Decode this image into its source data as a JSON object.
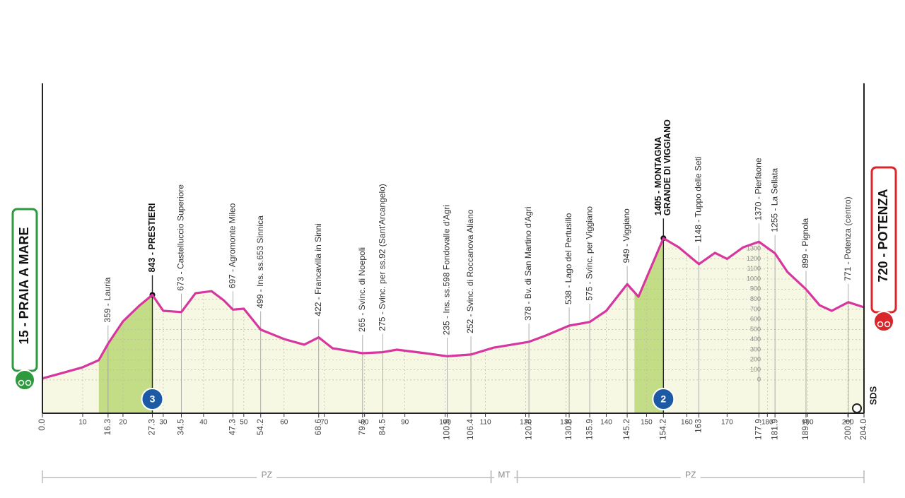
{
  "chart_data": {
    "type": "area",
    "x": [
      0,
      5,
      10,
      14,
      16.3,
      20,
      24,
      27.3,
      30,
      34.5,
      38,
      42,
      45,
      47.3,
      50,
      54.2,
      60,
      65,
      68.6,
      72,
      79.5,
      84.5,
      88,
      95,
      100.5,
      106.4,
      112,
      120.8,
      125,
      130.8,
      135.9,
      140,
      145.2,
      148,
      154.2,
      158,
      163,
      167,
      170,
      174,
      177.9,
      181.9,
      185,
      189.6,
      193,
      196,
      200.1,
      204
    ],
    "values": [
      15,
      70,
      126,
      196,
      359,
      580,
      734,
      843,
      685,
      673,
      860,
      880,
      790,
      697,
      706,
      499,
      405,
      350,
      422,
      315,
      265,
      275,
      300,
      265,
      235,
      252,
      320,
      378,
      440,
      538,
      575,
      685,
      949,
      825,
      1405,
      1315,
      1148,
      1260,
      1200,
      1315,
      1370,
      1255,
      1070,
      899,
      740,
      685,
      771,
      720
    ],
    "color": "#d6369e",
    "fill": "#f7f8e3",
    "xlim": [
      0,
      204
    ],
    "ylim": [
      -330,
      2940
    ],
    "xticks": [
      10,
      20,
      30,
      40,
      50,
      60,
      70,
      80,
      90,
      100,
      110,
      120,
      130,
      140,
      150,
      160,
      170,
      180,
      190,
      200
    ],
    "yticks": [
      0,
      100,
      200,
      300,
      400,
      500,
      600,
      700,
      800,
      900,
      1000,
      1100,
      1200,
      1300
    ],
    "grid": true,
    "waypoints": [
      {
        "km": {
          "value": 0,
          "label": "0.0"
        },
        "lines": [
          "15 - PRAIA A MARE"
        ],
        "style": "start"
      },
      {
        "km": 16.3,
        "lines": [
          "359 - Lauria"
        ]
      },
      {
        "km": 27.3,
        "lines": [
          "843 - PRESTIERI"
        ],
        "style": "summit"
      },
      {
        "km": 34.5,
        "lines": [
          "673 - Castelluccio Superiore"
        ]
      },
      {
        "km": 47.3,
        "lines": [
          "697 - Agromonte Mileo"
        ]
      },
      {
        "km": 54.2,
        "lines": [
          "499 - Ins. ss.653 Sinnica"
        ]
      },
      {
        "km": 68.6,
        "lines": [
          "422 - Francavilla in Sinni"
        ]
      },
      {
        "km": 79.5,
        "lines": [
          "265 - Svinc. di Noepoli"
        ]
      },
      {
        "km": 84.5,
        "lines": [
          "275 - Svinc. per ss.92 (Sant'Arcangelo)"
        ]
      },
      {
        "km": 100.5,
        "lines": [
          "235 - Ins. ss.598 Fondovalle d'Agri"
        ]
      },
      {
        "km": 106.4,
        "lines": [
          "252 - Svinc. di Roccanova Aliano"
        ]
      },
      {
        "km": 120.8,
        "lines": [
          "378 - Bv. di San Martino d'Agri"
        ]
      },
      {
        "km": 130.8,
        "lines": [
          "538 - Lago del Pertusillo"
        ]
      },
      {
        "km": 135.9,
        "lines": [
          "575 - Svinc. per Viggiano"
        ]
      },
      {
        "km": 145.2,
        "lines": [
          "949 - Viggiano"
        ]
      },
      {
        "km": 154.2,
        "lines": [
          "1405 - MONTAGNA",
          "GRANDE DI VIGGIANO"
        ],
        "style": "summit"
      },
      {
        "km": 163.0,
        "lines": [
          "1148 - Tuppo delle Seti"
        ]
      },
      {
        "km": 177.9,
        "lines": [
          "1370 - Pierfaone"
        ]
      },
      {
        "km": 181.9,
        "lines": [
          "1255 - La Sellata"
        ]
      },
      {
        "km": 189.6,
        "lines": [
          "899 - Pignola"
        ]
      },
      {
        "km": 200.1,
        "lines": [
          "771 - Potenza (centro)"
        ]
      },
      {
        "km": {
          "value": 204,
          "label": "204.0"
        },
        "lines": [
          "720 - POTENZA"
        ],
        "style": "finish"
      }
    ],
    "climbs": [
      {
        "start": 14,
        "end": 27.3,
        "category": "3",
        "color": "#c3dd86"
      },
      {
        "start": 147,
        "end": 154.2,
        "category": "2",
        "color": "#c3dd86"
      }
    ],
    "regions": [
      {
        "name": "PZ",
        "start": 0,
        "end": 111.4
      },
      {
        "name": "MT",
        "start": 111.4,
        "end": 117.9
      },
      {
        "name": "PZ",
        "start": 117.9,
        "end": 204
      }
    ],
    "logo": "SDS"
  }
}
